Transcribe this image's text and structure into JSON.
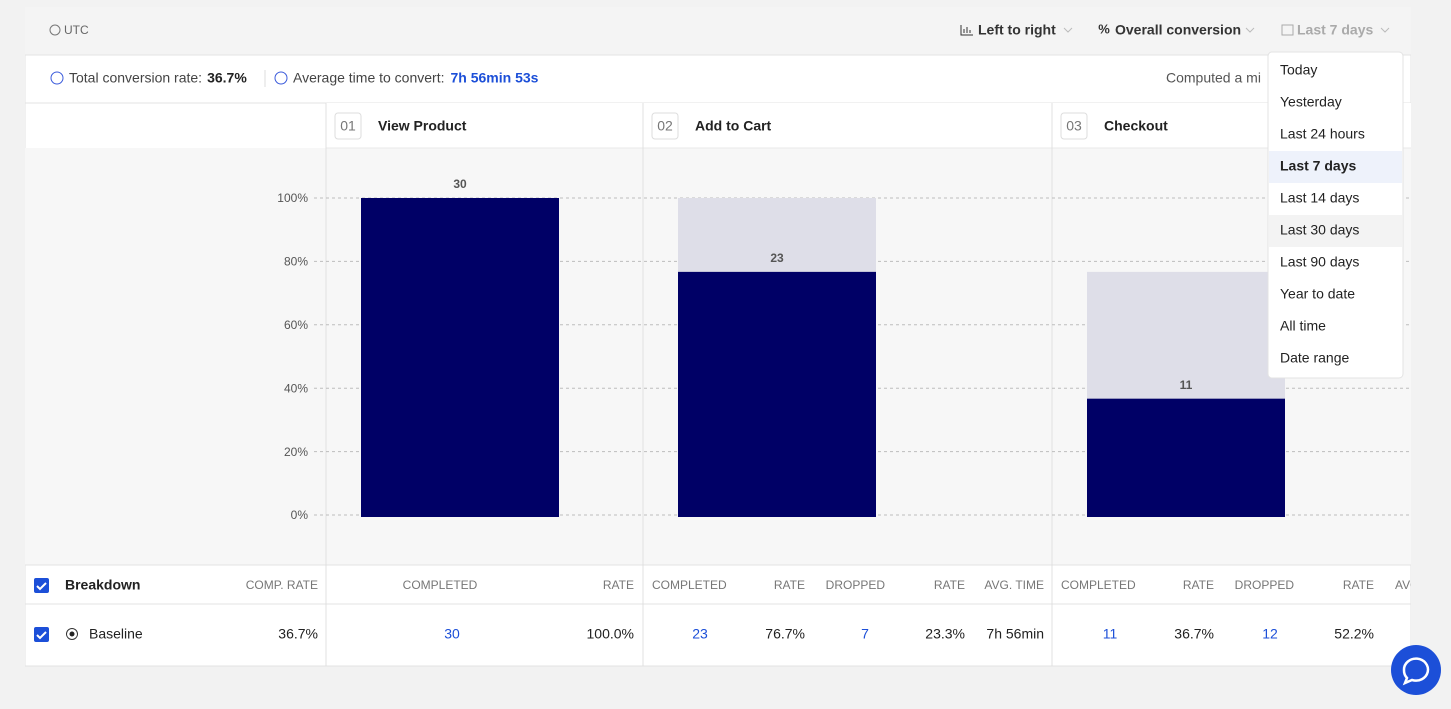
{
  "toolbar": {
    "timezone": "UTC",
    "layout": "Left to right",
    "metric": "Overall conversion",
    "date_range": "Last 7 days"
  },
  "summary": {
    "total_label": "Total conversion rate:",
    "total_value": "36.7%",
    "avg_label": "Average time to convert:",
    "avg_value": "7h 56min 53s",
    "computed": "Computed a mi"
  },
  "chart_data": {
    "type": "funnel",
    "steps": [
      "01",
      "02",
      "03"
    ],
    "categories": [
      "View Product",
      "Add to Cart",
      "Checkout"
    ],
    "values": [
      100,
      76.7,
      36.7
    ],
    "counts": [
      30,
      23,
      11
    ],
    "color": "#000066",
    "ghost_color": "#dedee8",
    "ylim": [
      0,
      100
    ],
    "yticks": [
      {
        "value": 0,
        "label": "0%"
      },
      {
        "value": 20,
        "label": "20%"
      },
      {
        "value": 40,
        "label": "40%"
      },
      {
        "value": 60,
        "label": "60%"
      },
      {
        "value": 80,
        "label": "80%"
      },
      {
        "value": 100,
        "label": "100%"
      }
    ],
    "grid": true
  },
  "table": {
    "header": [
      "Breakdown",
      "COMP. RATE",
      "COMPLETED",
      "RATE",
      "COMPLETED",
      "RATE",
      "DROPPED",
      "RATE",
      "AVG. TIME",
      "COMPLETED",
      "RATE",
      "DROPPED",
      "RATE",
      "AVG"
    ],
    "rows": [
      [
        "Baseline",
        "36.7%",
        "30",
        "100.0%",
        "23",
        "76.7%",
        "7",
        "23.3%",
        "7h 56min",
        "11",
        "36.7%",
        "12",
        "52.2%"
      ]
    ]
  },
  "date_menu": {
    "options": [
      "Today",
      "Yesterday",
      "Last 24 hours",
      "Last 7 days",
      "Last 14 days",
      "Last 30 days",
      "Last 90 days",
      "Year to date",
      "All time",
      "Date range"
    ],
    "selected": 3
  }
}
